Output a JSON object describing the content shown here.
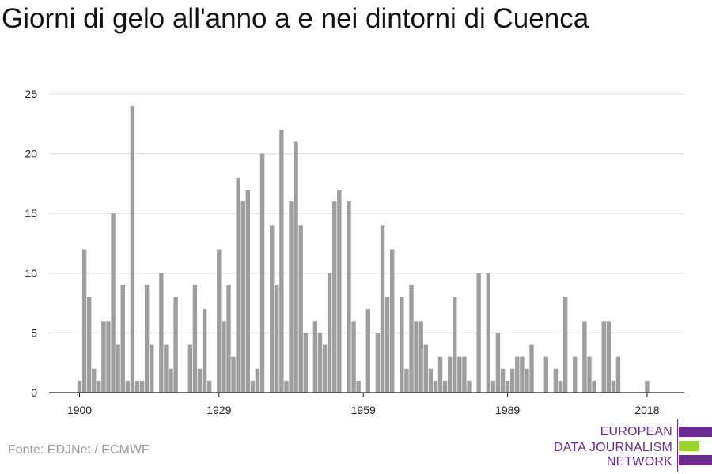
{
  "title": "Giorni di gelo all'anno a e nei dintorni di Cuenca",
  "source": "Fonte: EDJNet / ECMWF",
  "logo": {
    "lines": [
      "EUROPEAN",
      "DATA JOURNALISM",
      "NETWORK"
    ],
    "colors": {
      "purple": "#6a2c8f",
      "green": "#9bd42a"
    }
  },
  "colors": {
    "bar": "#9e9e9e",
    "grid": "#dddddd",
    "axis": "#222222"
  },
  "chart_data": {
    "type": "bar",
    "x_ticks": [
      1900,
      1929,
      1959,
      1989,
      2018
    ],
    "y_ticks": [
      0,
      5,
      10,
      15,
      20,
      25
    ],
    "ylim": [
      0,
      25
    ],
    "xlim": [
      1900,
      2018
    ],
    "grid": true,
    "x": [
      1900,
      1901,
      1902,
      1903,
      1904,
      1905,
      1906,
      1907,
      1908,
      1909,
      1910,
      1911,
      1912,
      1913,
      1914,
      1915,
      1916,
      1917,
      1918,
      1919,
      1920,
      1921,
      1922,
      1923,
      1924,
      1925,
      1926,
      1927,
      1928,
      1929,
      1930,
      1931,
      1932,
      1933,
      1934,
      1935,
      1936,
      1937,
      1938,
      1939,
      1940,
      1941,
      1942,
      1943,
      1944,
      1945,
      1946,
      1947,
      1948,
      1949,
      1950,
      1951,
      1952,
      1953,
      1954,
      1955,
      1956,
      1957,
      1958,
      1959,
      1960,
      1961,
      1962,
      1963,
      1964,
      1965,
      1966,
      1967,
      1968,
      1969,
      1970,
      1971,
      1972,
      1973,
      1974,
      1975,
      1976,
      1977,
      1978,
      1979,
      1980,
      1981,
      1982,
      1983,
      1984,
      1985,
      1986,
      1987,
      1988,
      1989,
      1990,
      1991,
      1992,
      1993,
      1994,
      1995,
      1996,
      1997,
      1998,
      1999,
      2000,
      2001,
      2002,
      2003,
      2004,
      2005,
      2006,
      2007,
      2008,
      2009,
      2010,
      2011,
      2012,
      2013,
      2014,
      2015,
      2016,
      2017,
      2018,
      2019,
      2020
    ],
    "values": [
      1,
      12,
      8,
      2,
      1,
      6,
      6,
      15,
      4,
      9,
      1,
      24,
      1,
      1,
      9,
      4,
      0,
      10,
      4,
      2,
      8,
      0,
      0,
      4,
      9,
      2,
      7,
      1,
      0,
      12,
      6,
      9,
      3,
      18,
      16,
      17,
      1,
      2,
      20,
      0,
      14,
      9,
      22,
      1,
      16,
      21,
      14,
      5,
      0,
      6,
      5,
      4,
      10,
      16,
      17,
      0,
      16,
      6,
      1,
      0,
      7,
      0,
      5,
      14,
      8,
      12,
      0,
      8,
      2,
      9,
      6,
      6,
      4,
      2,
      1,
      3,
      1,
      3,
      8,
      3,
      3,
      1,
      0,
      10,
      0,
      10,
      1,
      5,
      2,
      1,
      2,
      3,
      3,
      2,
      4,
      0,
      0,
      3,
      0,
      2,
      1,
      8,
      0,
      3,
      0,
      6,
      3,
      1,
      0,
      6,
      6,
      1,
      3,
      0,
      0,
      0,
      0,
      0,
      1,
      0,
      0
    ]
  }
}
